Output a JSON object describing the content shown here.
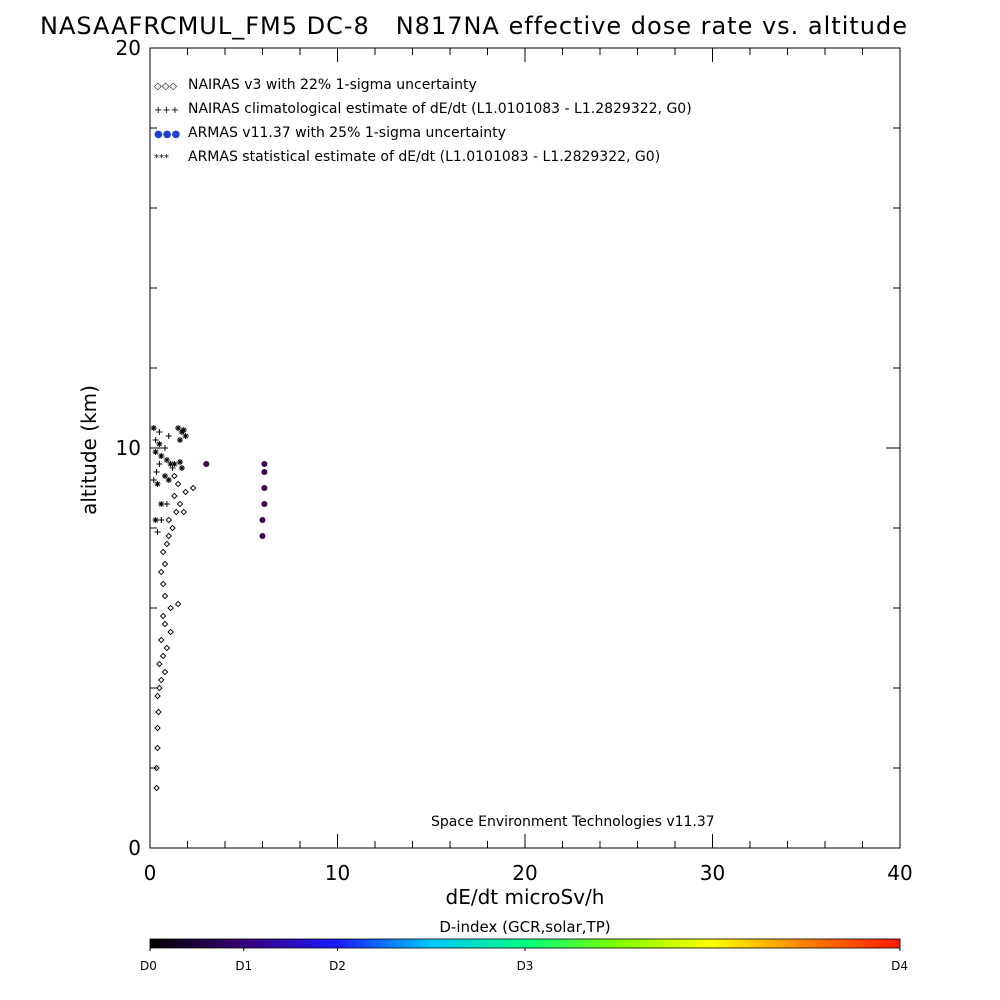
{
  "header": {
    "title": "NASAAFRCMUL_FM5 DC-8   N817NA effective dose rate vs. altitude"
  },
  "chart_data": {
    "type": "scatter",
    "xlabel": "dE/dt microSv/h",
    "ylabel": "altitude (km)",
    "xlim": [
      0,
      40
    ],
    "ylim": [
      0,
      20
    ],
    "xticks": [
      "0",
      "10",
      "20",
      "30",
      "40"
    ],
    "yticks": [
      "0",
      "10",
      "20"
    ],
    "grid": false,
    "legend_position": "top-left",
    "legend": [
      {
        "symbol": "◇◇◇",
        "label": "NAIRAS v3 with 22% 1-sigma uncertainty",
        "color": "#000000"
      },
      {
        "symbol": "+++",
        "label": "NAIRAS climatological estimate of dE/dt (L1.0101083 - L1.2829322, G0)",
        "color": "#000000"
      },
      {
        "symbol": "●●●",
        "label": "ARMAS v11.37 with 25% 1-sigma uncertainty",
        "color": "#1f3fd6"
      },
      {
        "symbol": "***",
        "label": "ARMAS statistical estimate of dE/dt (L1.0101083 - L1.2829322, G0)",
        "color": "#000000"
      }
    ],
    "credit": "Space Environment Technologies v11.37",
    "series": [
      {
        "marker": "diamond",
        "color": "#000000",
        "points": [
          [
            0.35,
            1.5
          ],
          [
            0.35,
            2.0
          ],
          [
            0.4,
            2.5
          ],
          [
            0.4,
            3.0
          ],
          [
            0.45,
            3.4
          ],
          [
            0.4,
            3.8
          ],
          [
            0.5,
            4.0
          ],
          [
            0.6,
            4.2
          ],
          [
            0.8,
            4.4
          ],
          [
            0.5,
            4.6
          ],
          [
            0.7,
            4.8
          ],
          [
            0.9,
            5.0
          ],
          [
            0.6,
            5.2
          ],
          [
            1.1,
            5.4
          ],
          [
            0.8,
            5.6
          ],
          [
            0.7,
            5.8
          ],
          [
            1.1,
            6.0
          ],
          [
            1.5,
            6.1
          ],
          [
            0.8,
            6.3
          ],
          [
            0.7,
            6.6
          ],
          [
            0.6,
            6.9
          ],
          [
            0.8,
            7.1
          ],
          [
            0.7,
            7.4
          ],
          [
            0.9,
            7.6
          ],
          [
            1.0,
            7.8
          ],
          [
            1.2,
            8.0
          ],
          [
            1.0,
            8.2
          ],
          [
            1.4,
            8.4
          ],
          [
            1.8,
            8.4
          ],
          [
            1.6,
            8.6
          ],
          [
            1.3,
            8.8
          ],
          [
            1.9,
            8.9
          ],
          [
            1.5,
            9.1
          ],
          [
            2.3,
            9.0
          ],
          [
            1.3,
            9.3
          ]
        ]
      },
      {
        "marker": "plus",
        "color": "#000000",
        "points": [
          [
            0.2,
            9.2
          ],
          [
            0.35,
            9.4
          ],
          [
            0.5,
            9.6
          ],
          [
            0.6,
            9.8
          ],
          [
            0.8,
            10.0
          ],
          [
            0.3,
            10.2
          ],
          [
            0.5,
            10.4
          ],
          [
            0.9,
            8.6
          ],
          [
            0.6,
            8.2
          ],
          [
            0.4,
            7.9
          ],
          [
            1.2,
            9.5
          ],
          [
            1.0,
            10.3
          ]
        ]
      },
      {
        "marker": "dot",
        "color": "#3d0052",
        "points": [
          [
            3.0,
            9.6
          ],
          [
            6.1,
            9.6
          ],
          [
            6.1,
            9.4
          ],
          [
            6.1,
            9.0
          ],
          [
            6.1,
            8.6
          ],
          [
            6.0,
            8.2
          ],
          [
            6.0,
            7.8
          ]
        ]
      },
      {
        "marker": "asterisk",
        "color": "#000000",
        "points": [
          [
            1.5,
            10.5
          ],
          [
            1.7,
            10.4
          ],
          [
            1.9,
            10.3
          ],
          [
            1.6,
            10.2
          ],
          [
            1.8,
            10.45
          ],
          [
            0.3,
            9.9
          ],
          [
            0.6,
            9.8
          ],
          [
            0.9,
            9.7
          ],
          [
            1.1,
            9.6
          ],
          [
            1.3,
            9.6
          ],
          [
            1.6,
            9.65
          ],
          [
            1.7,
            9.5
          ],
          [
            0.8,
            9.3
          ],
          [
            1.0,
            9.2
          ],
          [
            0.4,
            9.1
          ],
          [
            0.6,
            8.6
          ],
          [
            0.3,
            8.2
          ],
          [
            0.5,
            10.1
          ],
          [
            0.2,
            10.5
          ]
        ]
      }
    ]
  },
  "colorbar": {
    "title": "D-index (GCR,solar,TP)",
    "labels": [
      {
        "text": "D0",
        "pos": 0.0
      },
      {
        "text": "D1",
        "pos": 0.125
      },
      {
        "text": "D2",
        "pos": 0.25
      },
      {
        "text": "D3",
        "pos": 0.5
      },
      {
        "text": "D4",
        "pos": 1.0
      }
    ],
    "gradient": [
      "#000000",
      "#3a0078",
      "#1a1aff",
      "#00c8ff",
      "#00ff80",
      "#80ff00",
      "#ffff00",
      "#ff8000",
      "#ff1a00"
    ]
  }
}
